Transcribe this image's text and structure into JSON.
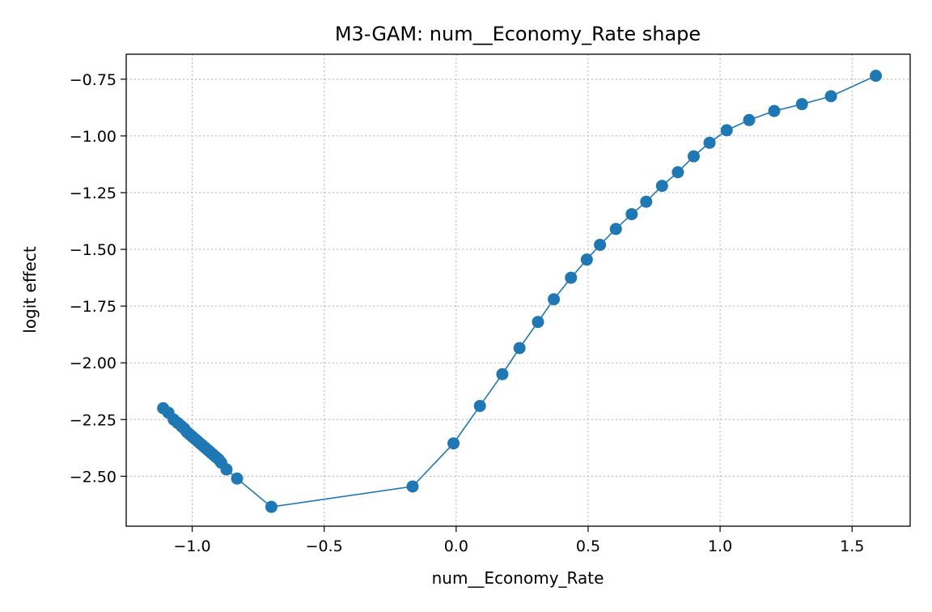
{
  "chart_data": {
    "type": "line",
    "title": "M3-GAM: num__Economy_Rate shape",
    "xlabel": "num__Economy_Rate",
    "ylabel": "logit effect",
    "xlim": [
      -1.25,
      1.72
    ],
    "ylim": [
      -2.72,
      -0.64
    ],
    "x_ticks": [
      -1.0,
      -0.5,
      0.0,
      0.5,
      1.0,
      1.5
    ],
    "x_tick_labels": [
      "−1.0",
      "−0.5",
      "0.0",
      "0.5",
      "1.0",
      "1.5"
    ],
    "y_ticks": [
      -0.75,
      -1.0,
      -1.25,
      -1.5,
      -1.75,
      -2.0,
      -2.25,
      -2.5
    ],
    "y_tick_labels": [
      "−0.75",
      "−1.00",
      "−1.25",
      "−1.50",
      "−1.75",
      "−2.00",
      "−2.25",
      "−2.50"
    ],
    "grid": true,
    "color": "#1f77b4",
    "series": [
      {
        "x": [
          -1.11,
          -1.09,
          -1.07,
          -1.055,
          -1.04,
          -1.03,
          -1.02,
          -1.01,
          -1.0,
          -0.99,
          -0.98,
          -0.97,
          -0.96,
          -0.95,
          -0.94,
          -0.93,
          -0.92,
          -0.91,
          -0.9,
          -0.89,
          -0.87,
          -0.83,
          -0.7,
          -0.165,
          -0.01,
          0.09,
          0.175,
          0.24,
          0.31,
          0.37,
          0.435,
          0.495,
          0.545,
          0.605,
          0.665,
          0.72,
          0.78,
          0.84,
          0.9,
          0.96,
          1.025,
          1.11,
          1.205,
          1.31,
          1.42,
          1.59
        ],
        "y": [
          -2.2,
          -2.22,
          -2.25,
          -2.265,
          -2.28,
          -2.29,
          -2.305,
          -2.315,
          -2.325,
          -2.335,
          -2.345,
          -2.355,
          -2.365,
          -2.375,
          -2.385,
          -2.395,
          -2.405,
          -2.415,
          -2.425,
          -2.44,
          -2.47,
          -2.51,
          -2.635,
          -2.545,
          -2.355,
          -2.19,
          -2.05,
          -1.935,
          -1.82,
          -1.72,
          -1.625,
          -1.545,
          -1.48,
          -1.41,
          -1.345,
          -1.29,
          -1.22,
          -1.16,
          -1.09,
          -1.03,
          -0.975,
          -0.93,
          -0.89,
          -0.86,
          -0.825,
          -0.735
        ]
      }
    ]
  }
}
